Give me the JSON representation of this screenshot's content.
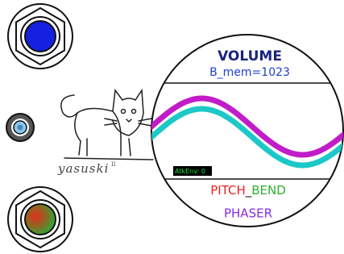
{
  "display": {
    "title": "VOLUME",
    "memory": "B_mem=1023",
    "envelope": "AtkEnv: 0",
    "mode": [
      "PITCH",
      "_",
      "BEND"
    ],
    "effect": "PHASER"
  },
  "logo": {
    "name": "yasuski",
    "mark": "II"
  }
}
